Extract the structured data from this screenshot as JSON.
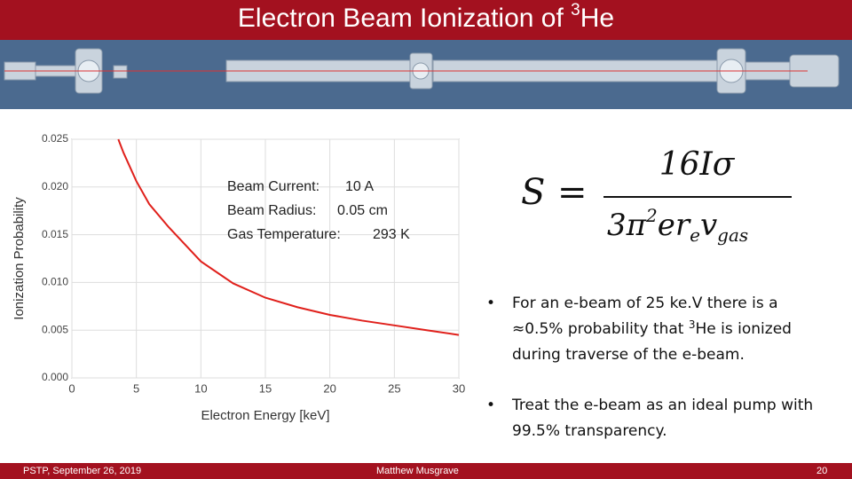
{
  "title": {
    "text": "Electron Beam Ionization of ",
    "sup": "3",
    "rest": "He"
  },
  "chart_data": {
    "type": "line",
    "xlabel": "Electron Energy [keV]",
    "ylabel": "Ionization Probability",
    "x": [
      3.6,
      4,
      5,
      6,
      7.5,
      10,
      12.5,
      15,
      17.5,
      20,
      22.5,
      25,
      27.5,
      30
    ],
    "values": [
      0.025,
      0.0236,
      0.0206,
      0.0182,
      0.0158,
      0.0122,
      0.0099,
      0.0084,
      0.0074,
      0.0066,
      0.006,
      0.0055,
      0.005,
      0.0045
    ],
    "color": "#e0201b",
    "xlim": [
      0,
      30
    ],
    "xticks": [
      0,
      5,
      10,
      15,
      20,
      25,
      30
    ],
    "ylim": [
      0,
      0.025
    ],
    "yticks": [
      {
        "value": 0,
        "label": "0.000"
      },
      {
        "value": 0.005,
        "label": "0.005"
      },
      {
        "value": 0.01,
        "label": "0.010"
      },
      {
        "value": 0.015,
        "label": "0.015"
      },
      {
        "value": 0.02,
        "label": "0.020"
      },
      {
        "value": 0.025,
        "label": "0.025"
      }
    ],
    "annotations": [
      {
        "label": "Beam Current:",
        "value": "10 A"
      },
      {
        "label": "Beam Radius:",
        "value": "0.05 cm"
      },
      {
        "label": "Gas Temperature:",
        "value": "293 K"
      }
    ]
  },
  "formula": {
    "lhs": "S",
    "eq": "=",
    "numerator": "16Iσ",
    "den_a": "3π",
    "den_exp": "2",
    "den_b": "er",
    "den_sub_e": "e",
    "den_v": "v",
    "den_sub_gas": "gas"
  },
  "bullets": [
    {
      "text": "For an e-beam of 25 ke.V there is  a ≈0.5% probability that ",
      "sup": "3",
      "rest": "He is ionized during traverse of the e-beam."
    },
    {
      "text": "Treat the e-beam as an ideal pump with 99.5% transparency."
    }
  ],
  "footer": {
    "left": "PSTP, September 26, 2019",
    "center": "Matthew Musgrave",
    "page": "20"
  }
}
